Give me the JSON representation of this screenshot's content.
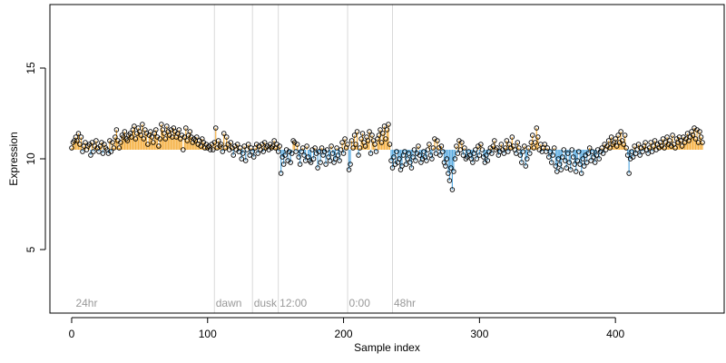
{
  "chart_data": {
    "type": "scatter",
    "title": "",
    "xlabel": "Sample index",
    "ylabel": "Expression",
    "xlim": [
      -16,
      480
    ],
    "ylim": [
      1.5,
      18.5
    ],
    "xticks": [
      0,
      100,
      200,
      300,
      400
    ],
    "yticks": [
      5,
      10,
      15
    ],
    "baseline": 10.5,
    "n_points": 465,
    "vlines": [
      105,
      133,
      152,
      203,
      236
    ],
    "regions": [
      {
        "label": "24hr",
        "x": 3
      },
      {
        "label": "dawn",
        "x": 106
      },
      {
        "label": "dusk",
        "x": 134
      },
      {
        "label": "12:00",
        "x": 153
      },
      {
        "label": "0:00",
        "x": 204
      },
      {
        "label": "48hr",
        "x": 237
      }
    ],
    "colors": {
      "above": "#F5B041",
      "below": "#5DADE2",
      "vline": "#D9D9D9",
      "point_stroke": "#000000",
      "axis": "#000000",
      "region_text": "#999999"
    },
    "series": [
      {
        "values": [
          10.6,
          10.9,
          11.0,
          11.2,
          11.0,
          11.4,
          10.8,
          11.2,
          10.4,
          10.7,
          10.9,
          10.5,
          10.7,
          10.8,
          10.2,
          10.9,
          10.4,
          10.7,
          11.0,
          10.6,
          10.4,
          10.7,
          10.9,
          10.3,
          10.8,
          10.6,
          10.5,
          10.3,
          11.0,
          10.4,
          10.9,
          10.6,
          11.2,
          11.6,
          11.0,
          10.6,
          10.9,
          11.3,
          11.2,
          11.5,
          11.1,
          11.0,
          11.3,
          11.4,
          11.2,
          11.6,
          11.8,
          11.1,
          11.4,
          11.7,
          11.5,
          11.3,
          11.9,
          11.1,
          11.6,
          11.4,
          10.8,
          11.3,
          11.5,
          11.2,
          10.9,
          11.4,
          11.6,
          11.2,
          10.7,
          11.1,
          11.9,
          11.6,
          11.4,
          11.1,
          11.8,
          11.5,
          11.3,
          11.6,
          11.2,
          11.7,
          11.5,
          11.2,
          11.4,
          11.6,
          11.1,
          11.3,
          10.5,
          11.2,
          11.7,
          11.0,
          11.3,
          11.5,
          11.2,
          10.9,
          11.1,
          11.0,
          11.2,
          10.8,
          11.0,
          10.7,
          11.1,
          10.9,
          10.6,
          10.8,
          10.6,
          10.7,
          10.5,
          10.8,
          10.5,
          10.9,
          11.7,
          10.6,
          11.0,
          10.7,
          10.8,
          10.4,
          11.4,
          10.6,
          11.2,
          10.8,
          10.5,
          10.9,
          10.6,
          10.2,
          10.7,
          10.5,
          10.8,
          10.4,
          10.6,
          10.0,
          10.3,
          10.7,
          9.9,
          10.5,
          10.8,
          10.2,
          10.6,
          10.4,
          10.1,
          10.6,
          10.8,
          10.3,
          10.7,
          10.5,
          10.8,
          10.4,
          10.9,
          10.6,
          10.7,
          10.5,
          10.8,
          10.6,
          10.7,
          11.0,
          10.6,
          10.8,
          10.4,
          10.7,
          9.2,
          10.1,
          9.7,
          10.2,
          10.5,
          9.9,
          10.4,
          9.8,
          10.3,
          11.0,
          10.9,
          10.4,
          10.8,
          10.1,
          9.7,
          10.4,
          10.6,
          10.2,
          9.9,
          10.7,
          10.1,
          9.9,
          9.8,
          10.5,
          10.0,
          10.6,
          10.3,
          9.5,
          10.4,
          9.8,
          10.6,
          10.2,
          10.4,
          9.7,
          10.5,
          10.1,
          9.9,
          10.7,
          10.3,
          9.8,
          10.0,
          10.6,
          10.2,
          9.9,
          10.5,
          10.9,
          10.3,
          11.1,
          10.6,
          10.8,
          9.4,
          9.7,
          11.0,
          10.6,
          11.3,
          10.8,
          11.5,
          10.2,
          10.6,
          11.1,
          11.4,
          10.9,
          10.7,
          11.2,
          11.0,
          11.5,
          10.3,
          11.3,
          11.0,
          10.8,
          10.4,
          11.1,
          11.3,
          11.6,
          10.9,
          11.4,
          11.8,
          11.1,
          11.6,
          11.9,
          10.8,
          9.9,
          9.5,
          10.1,
          9.7,
          10.4,
          9.8,
          10.0,
          9.4,
          9.6,
          10.2,
          10.4,
          9.7,
          10.0,
          10.3,
          9.8,
          9.5,
          10.1,
          10.5,
          9.9,
          10.3,
          10.7,
          10.2,
          9.8,
          10.0,
          10.4,
          10.1,
          9.9,
          10.5,
          10.8,
          10.2,
          10.0,
          10.6,
          11.1,
          10.3,
          11.0,
          10.6,
          10.2,
          10.7,
          10.4,
          9.8,
          9.6,
          10.0,
          9.2,
          8.8,
          9.5,
          8.3,
          9.3,
          10.0,
          10.7,
          10.3,
          11.0,
          10.5,
          10.9,
          10.2,
          10.6,
          10.0,
          10.1,
          10.4,
          10.2,
          10.0,
          9.8,
          10.3,
          10.5,
          10.0,
          10.7,
          10.2,
          10.8,
          10.5,
          10.1,
          9.8,
          10.2,
          9.9,
          10.4,
          10.6,
          10.3,
          10.7,
          11.0,
          10.5,
          10.6,
          10.2,
          10.4,
          10.8,
          10.5,
          10.3,
          10.6,
          11.0,
          10.4,
          10.8,
          10.6,
          11.2,
          10.7,
          10.5,
          10.3,
          10.9,
          10.6,
          10.2,
          9.8,
          10.4,
          10.7,
          9.6,
          10.0,
          10.6,
          10.3,
          10.9,
          11.3,
          10.6,
          10.9,
          11.7,
          11.2,
          10.5,
          10.8,
          10.4,
          10.6,
          10.8,
          10.4,
          10.6,
          10.1,
          10.4,
          9.8,
          10.2,
          10.6,
          9.6,
          9.3,
          10.0,
          9.7,
          9.4,
          10.1,
          10.5,
          9.9,
          9.5,
          10.3,
          9.8,
          9.4,
          10.5,
          10.1,
          9.7,
          9.3,
          9.9,
          10.4,
          9.7,
          9.2,
          10.0,
          9.6,
          10.2,
          9.8,
          10.3,
          10.6,
          9.9,
          10.4,
          10.1,
          9.8,
          10.2,
          10.5,
          10.0,
          10.4,
          10.6,
          10.3,
          10.8,
          10.5,
          10.7,
          11.0,
          10.6,
          11.2,
          10.8,
          10.9,
          11.1,
          10.7,
          11.3,
          10.9,
          11.5,
          11.0,
          10.8,
          11.3,
          10.6,
          10.2,
          9.2,
          10.0,
          10.4,
          10.1,
          10.7,
          10.3,
          10.5,
          10.8,
          10.2,
          10.6,
          10.4,
          10.7,
          10.9,
          10.5,
          10.3,
          10.6,
          10.9,
          10.4,
          10.7,
          11.0,
          10.5,
          10.8,
          10.6,
          10.9,
          10.7,
          11.1,
          10.6,
          10.9,
          11.2,
          10.8,
          11.0,
          10.7,
          11.3,
          10.8,
          10.6,
          11.1,
          10.9,
          11.2,
          11.0,
          10.7,
          11.2,
          10.9,
          11.1,
          11.4,
          11.0,
          11.2,
          11.5,
          11.3,
          11.7,
          11.1,
          11.6,
          10.9,
          11.5,
          11.2,
          10.9
        ]
      }
    ]
  }
}
